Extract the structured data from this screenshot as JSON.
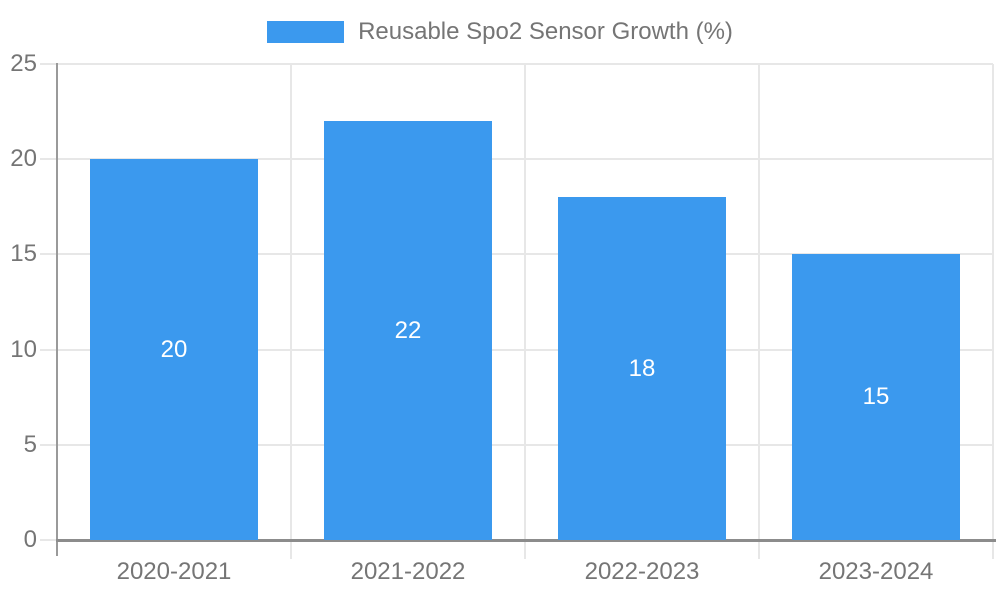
{
  "chart_data": {
    "type": "bar",
    "title": "",
    "legend_label": "Reusable Spo2 Sensor Growth (%)",
    "legend_position": "top",
    "categories": [
      "2020-2021",
      "2021-2022",
      "2022-2023",
      "2023-2024"
    ],
    "values": [
      20,
      22,
      18,
      15
    ],
    "value_labels": [
      "20",
      "22",
      "18",
      "15"
    ],
    "value_label_position": "inside-center",
    "xlabel": "",
    "ylabel": "",
    "ylim": [
      0,
      25
    ],
    "yticks": [
      "0",
      "5",
      "10",
      "15",
      "20",
      "25"
    ],
    "grid": true,
    "colors": {
      "bar": "#3B99EE",
      "axis_text": "#757575",
      "grid_line": "#e7e7e7",
      "axis_line": "#9a9a9a",
      "x_axis_line": "#8c8c8c",
      "value_label": "#ffffff",
      "background": "#ffffff"
    }
  }
}
